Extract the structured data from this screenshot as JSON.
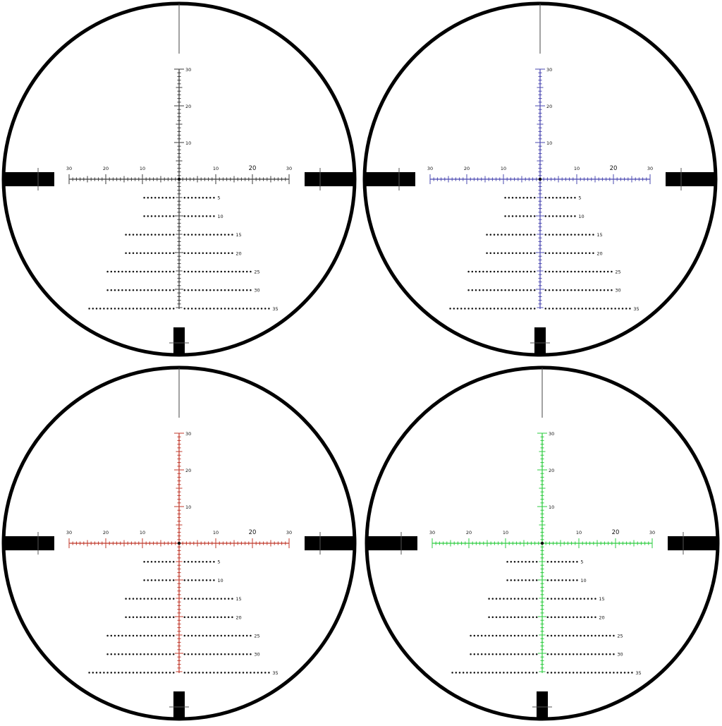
{
  "reticles": [
    {
      "id": "black",
      "color": "#3a3a3a"
    },
    {
      "id": "blue",
      "color": "#4a48b0"
    },
    {
      "id": "red",
      "color": "#c0392b"
    },
    {
      "id": "green",
      "color": "#2ecc40"
    }
  ],
  "scale": {
    "vertical_labels": [
      "30",
      "20",
      "10"
    ],
    "horizontal_left_labels": [
      "30",
      "20",
      "10"
    ],
    "horizontal_right_labels": [
      "10",
      "20",
      "30"
    ],
    "holdover_labels": [
      "5",
      "10",
      "15",
      "20",
      "25",
      "30",
      "35"
    ]
  },
  "colors": {
    "frame": "#000000",
    "dots": "#111111",
    "background": "#ffffff"
  }
}
